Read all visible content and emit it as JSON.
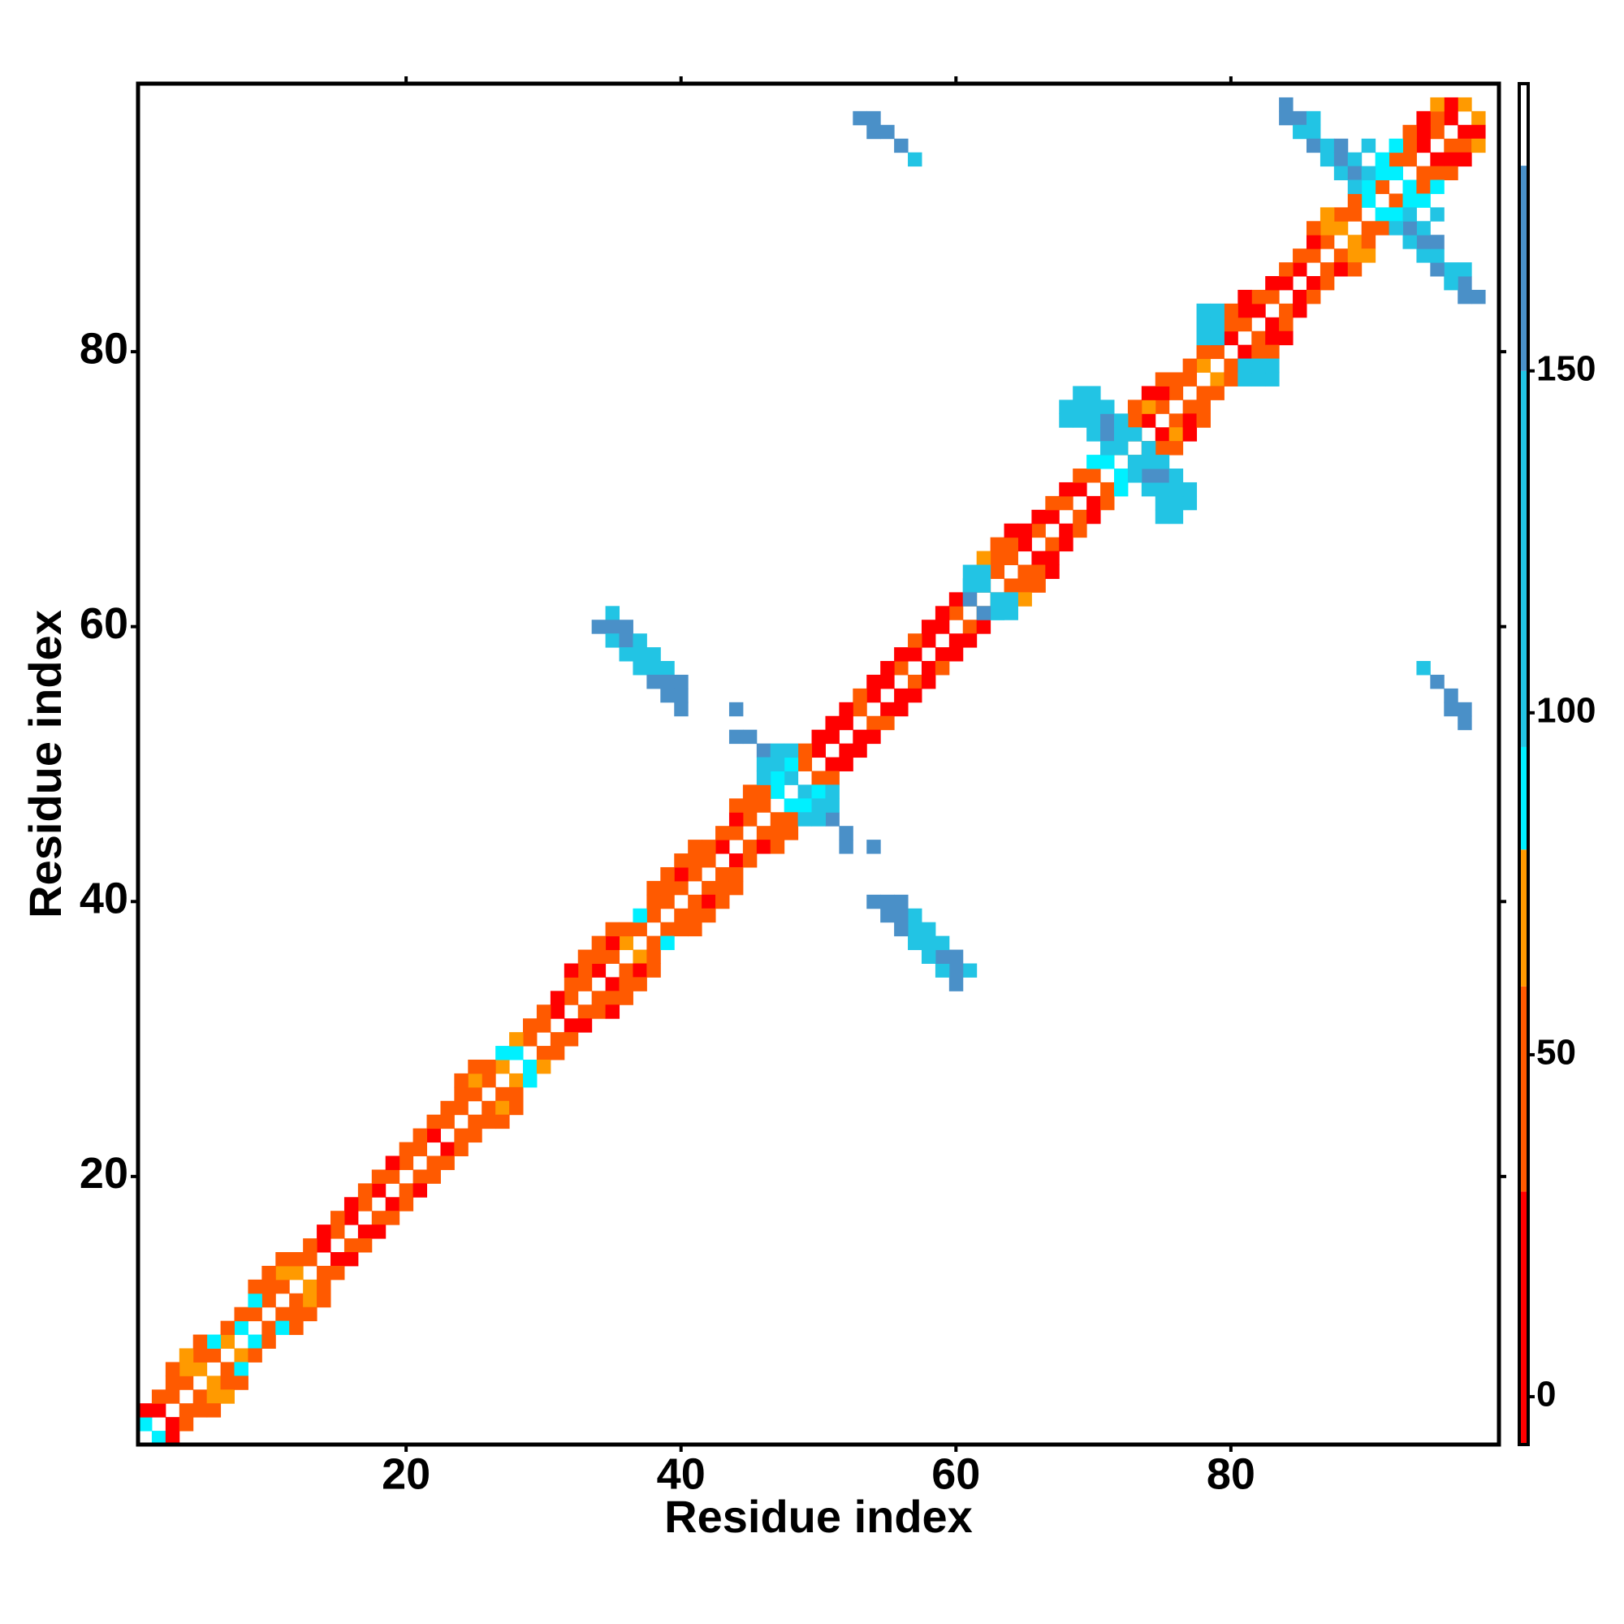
{
  "chart_data": {
    "type": "heatmap",
    "x_label": "Residue index",
    "y_label": "Residue index",
    "xlim": [
      0.5,
      99.5
    ],
    "ylim": [
      0.5,
      99.5
    ],
    "xticks": [
      20,
      40,
      60,
      80
    ],
    "yticks": [
      20,
      40,
      60,
      80
    ],
    "symmetric": true,
    "colorbar": {
      "lim": [
        -7,
        192
      ],
      "ticks": [
        0,
        50,
        100,
        150
      ]
    },
    "color_scale": [
      {
        "from": -7,
        "to": 30,
        "color": "#ff0000"
      },
      {
        "from": 30,
        "to": 60,
        "color": "#ff5a00"
      },
      {
        "from": 60,
        "to": 80,
        "color": "#ff9a00"
      },
      {
        "from": 80,
        "to": 95,
        "color": "#00f0ff"
      },
      {
        "from": 95,
        "to": 150,
        "color": "#22c4e4"
      },
      {
        "from": 150,
        "to": 180,
        "color": "#4a90c8"
      },
      {
        "from": 180,
        "to": 192,
        "color": "#ffffff"
      }
    ],
    "cells": [
      [
        1,
        2,
        88
      ],
      [
        2,
        3,
        10
      ],
      [
        3,
        4,
        40
      ],
      [
        4,
        5,
        40
      ],
      [
        5,
        6,
        70
      ],
      [
        6,
        7,
        40
      ],
      [
        7,
        8,
        70
      ],
      [
        8,
        9,
        88
      ],
      [
        9,
        10,
        40
      ],
      [
        10,
        11,
        40
      ],
      [
        11,
        12,
        40
      ],
      [
        12,
        13,
        70
      ],
      [
        13,
        14,
        40
      ],
      [
        14,
        15,
        10
      ],
      [
        15,
        16,
        40
      ],
      [
        16,
        17,
        10
      ],
      [
        17,
        18,
        40
      ],
      [
        18,
        19,
        10
      ],
      [
        19,
        20,
        40
      ],
      [
        20,
        21,
        40
      ],
      [
        21,
        22,
        40
      ],
      [
        22,
        23,
        10
      ],
      [
        23,
        24,
        40
      ],
      [
        24,
        25,
        40
      ],
      [
        25,
        26,
        40
      ],
      [
        26,
        27,
        40
      ],
      [
        27,
        28,
        70
      ],
      [
        28,
        29,
        88
      ],
      [
        29,
        30,
        40
      ],
      [
        30,
        31,
        40
      ],
      [
        31,
        32,
        10
      ],
      [
        32,
        33,
        40
      ],
      [
        33,
        34,
        40
      ],
      [
        34,
        35,
        10
      ],
      [
        35,
        36,
        40
      ],
      [
        36,
        37,
        70
      ],
      [
        37,
        38,
        40
      ],
      [
        38,
        39,
        40
      ],
      [
        39,
        40,
        40
      ],
      [
        40,
        41,
        40
      ],
      [
        41,
        42,
        40
      ],
      [
        42,
        43,
        40
      ],
      [
        43,
        44,
        10
      ],
      [
        44,
        45,
        40
      ],
      [
        45,
        46,
        40
      ],
      [
        46,
        47,
        40
      ],
      [
        47,
        48,
        88
      ],
      [
        48,
        49,
        120
      ],
      [
        49,
        50,
        40
      ],
      [
        50,
        51,
        10
      ],
      [
        51,
        52,
        10
      ],
      [
        52,
        53,
        10
      ],
      [
        53,
        54,
        40
      ],
      [
        54,
        55,
        10
      ],
      [
        55,
        56,
        10
      ],
      [
        56,
        57,
        40
      ],
      [
        57,
        58,
        10
      ],
      [
        58,
        59,
        10
      ],
      [
        59,
        60,
        10
      ],
      [
        60,
        61,
        40
      ],
      [
        61,
        62,
        70
      ],
      [
        62,
        63,
        40
      ],
      [
        63,
        64,
        40
      ],
      [
        64,
        65,
        40
      ],
      [
        65,
        66,
        10
      ],
      [
        66,
        67,
        40
      ],
      [
        67,
        68,
        10
      ],
      [
        68,
        69,
        40
      ],
      [
        69,
        70,
        10
      ],
      [
        70,
        71,
        40
      ],
      [
        71,
        72,
        88
      ],
      [
        72,
        73,
        70
      ],
      [
        73,
        74,
        40
      ],
      [
        74,
        75,
        10
      ],
      [
        75,
        76,
        40
      ],
      [
        76,
        77,
        40
      ],
      [
        77,
        78,
        40
      ],
      [
        78,
        79,
        70
      ],
      [
        79,
        80,
        40
      ],
      [
        80,
        81,
        10
      ],
      [
        81,
        82,
        40
      ],
      [
        82,
        83,
        10
      ],
      [
        83,
        84,
        40
      ],
      [
        84,
        85,
        10
      ],
      [
        85,
        86,
        10
      ],
      [
        86,
        87,
        40
      ],
      [
        87,
        88,
        40
      ],
      [
        88,
        89,
        70
      ],
      [
        89,
        90,
        40
      ],
      [
        90,
        91,
        88
      ],
      [
        91,
        92,
        40
      ],
      [
        92,
        93,
        88
      ],
      [
        93,
        94,
        40
      ],
      [
        94,
        95,
        10
      ],
      [
        95,
        96,
        40
      ],
      [
        96,
        97,
        10
      ],
      [
        97,
        98,
        70
      ],
      [
        1,
        3,
        10
      ],
      [
        2,
        4,
        40
      ],
      [
        3,
        5,
        40
      ],
      [
        4,
        6,
        70
      ],
      [
        5,
        7,
        40
      ],
      [
        6,
        8,
        88
      ],
      [
        7,
        9,
        40
      ],
      [
        8,
        10,
        40
      ],
      [
        9,
        11,
        88
      ],
      [
        10,
        12,
        40
      ],
      [
        11,
        13,
        70
      ],
      [
        12,
        14,
        40
      ],
      [
        13,
        15,
        40
      ],
      [
        14,
        16,
        10
      ],
      [
        15,
        17,
        40
      ],
      [
        16,
        18,
        10
      ],
      [
        17,
        19,
        40
      ],
      [
        18,
        20,
        40
      ],
      [
        19,
        21,
        10
      ],
      [
        20,
        22,
        40
      ],
      [
        21,
        23,
        40
      ],
      [
        22,
        24,
        40
      ],
      [
        23,
        25,
        40
      ],
      [
        24,
        26,
        40
      ],
      [
        25,
        27,
        70
      ],
      [
        26,
        28,
        40
      ],
      [
        27,
        29,
        88
      ],
      [
        28,
        30,
        70
      ],
      [
        29,
        31,
        40
      ],
      [
        30,
        32,
        40
      ],
      [
        31,
        33,
        10
      ],
      [
        32,
        34,
        40
      ],
      [
        33,
        35,
        40
      ],
      [
        34,
        36,
        40
      ],
      [
        35,
        37,
        10
      ],
      [
        36,
        38,
        40
      ],
      [
        37,
        39,
        88
      ],
      [
        38,
        40,
        40
      ],
      [
        39,
        41,
        40
      ],
      [
        40,
        42,
        10
      ],
      [
        41,
        43,
        40
      ],
      [
        42,
        44,
        40
      ],
      [
        43,
        45,
        40
      ],
      [
        44,
        46,
        10
      ],
      [
        45,
        47,
        40
      ],
      [
        46,
        48,
        40
      ],
      [
        47,
        49,
        88
      ],
      [
        48,
        50,
        88
      ],
      [
        49,
        51,
        40
      ],
      [
        50,
        52,
        10
      ],
      [
        51,
        53,
        10
      ],
      [
        52,
        54,
        10
      ],
      [
        53,
        55,
        40
      ],
      [
        54,
        56,
        10
      ],
      [
        55,
        57,
        10
      ],
      [
        56,
        58,
        10
      ],
      [
        57,
        59,
        40
      ],
      [
        58,
        60,
        10
      ],
      [
        59,
        61,
        10
      ],
      [
        60,
        62,
        10
      ],
      [
        61,
        63,
        88
      ],
      [
        62,
        64,
        70
      ],
      [
        63,
        65,
        40
      ],
      [
        64,
        66,
        40
      ],
      [
        65,
        67,
        10
      ],
      [
        66,
        68,
        10
      ],
      [
        67,
        69,
        40
      ],
      [
        68,
        70,
        10
      ],
      [
        69,
        71,
        40
      ],
      [
        70,
        72,
        88
      ],
      [
        71,
        73,
        88
      ],
      [
        72,
        74,
        40
      ],
      [
        73,
        75,
        40
      ],
      [
        74,
        76,
        70
      ],
      [
        75,
        77,
        10
      ],
      [
        76,
        78,
        40
      ],
      [
        77,
        79,
        40
      ],
      [
        78,
        80,
        40
      ],
      [
        79,
        81,
        10
      ],
      [
        80,
        82,
        40
      ],
      [
        81,
        83,
        10
      ],
      [
        82,
        84,
        40
      ],
      [
        83,
        85,
        10
      ],
      [
        84,
        86,
        40
      ],
      [
        85,
        87,
        40
      ],
      [
        86,
        88,
        10
      ],
      [
        87,
        89,
        70
      ],
      [
        88,
        90,
        40
      ],
      [
        89,
        91,
        40
      ],
      [
        90,
        92,
        88
      ],
      [
        91,
        93,
        88
      ],
      [
        92,
        94,
        40
      ],
      [
        93,
        95,
        40
      ],
      [
        94,
        96,
        10
      ],
      [
        95,
        97,
        40
      ],
      [
        96,
        98,
        10
      ],
      [
        3,
        6,
        40
      ],
      [
        4,
        7,
        70
      ],
      [
        5,
        8,
        40
      ],
      [
        9,
        12,
        40
      ],
      [
        10,
        13,
        40
      ],
      [
        11,
        14,
        40
      ],
      [
        24,
        27,
        40
      ],
      [
        25,
        28,
        40
      ],
      [
        32,
        35,
        10
      ],
      [
        33,
        36,
        40
      ],
      [
        34,
        37,
        40
      ],
      [
        35,
        38,
        40
      ],
      [
        38,
        41,
        40
      ],
      [
        39,
        42,
        40
      ],
      [
        40,
        43,
        40
      ],
      [
        41,
        44,
        40
      ],
      [
        44,
        47,
        40
      ],
      [
        45,
        48,
        40
      ],
      [
        62,
        65,
        70
      ],
      [
        63,
        66,
        40
      ],
      [
        64,
        67,
        10
      ],
      [
        73,
        76,
        40
      ],
      [
        74,
        77,
        10
      ],
      [
        75,
        78,
        40
      ],
      [
        80,
        83,
        40
      ],
      [
        81,
        84,
        10
      ],
      [
        86,
        89,
        40
      ],
      [
        87,
        90,
        70
      ],
      [
        93,
        96,
        40
      ],
      [
        94,
        97,
        10
      ],
      [
        95,
        98,
        70
      ],
      [
        34,
        60,
        165
      ],
      [
        35,
        61,
        120
      ],
      [
        35,
        60,
        165
      ],
      [
        35,
        59,
        120
      ],
      [
        36,
        60,
        165
      ],
      [
        36,
        59,
        165
      ],
      [
        36,
        58,
        120
      ],
      [
        37,
        59,
        120
      ],
      [
        37,
        58,
        120
      ],
      [
        37,
        57,
        120
      ],
      [
        38,
        58,
        120
      ],
      [
        38,
        57,
        120
      ],
      [
        38,
        56,
        165
      ],
      [
        39,
        57,
        120
      ],
      [
        39,
        56,
        165
      ],
      [
        39,
        55,
        165
      ],
      [
        40,
        56,
        165
      ],
      [
        40,
        55,
        165
      ],
      [
        40,
        54,
        165
      ],
      [
        44,
        54,
        165
      ],
      [
        44,
        52,
        165
      ],
      [
        45,
        52,
        165
      ],
      [
        46,
        51,
        165
      ],
      [
        46,
        50,
        120
      ],
      [
        47,
        51,
        120
      ],
      [
        47,
        50,
        120
      ],
      [
        48,
        51,
        120
      ],
      [
        46,
        49,
        120
      ],
      [
        53,
        97,
        165
      ],
      [
        54,
        97,
        165
      ],
      [
        54,
        96,
        165
      ],
      [
        55,
        96,
        165
      ],
      [
        56,
        95,
        165
      ],
      [
        57,
        94,
        120
      ],
      [
        61,
        64,
        120
      ],
      [
        61,
        63,
        120
      ],
      [
        62,
        64,
        120
      ],
      [
        62,
        63,
        120
      ],
      [
        61,
        62,
        165
      ],
      [
        68,
        75,
        120
      ],
      [
        68,
        76,
        120
      ],
      [
        69,
        75,
        120
      ],
      [
        69,
        76,
        120
      ],
      [
        69,
        77,
        120
      ],
      [
        70,
        77,
        120
      ],
      [
        70,
        76,
        120
      ],
      [
        70,
        75,
        120
      ],
      [
        70,
        74,
        120
      ],
      [
        71,
        75,
        165
      ],
      [
        71,
        74,
        165
      ],
      [
        71,
        73,
        120
      ],
      [
        72,
        74,
        120
      ],
      [
        72,
        73,
        120
      ],
      [
        72,
        75,
        120
      ],
      [
        73,
        74,
        120
      ],
      [
        71,
        76,
        120
      ],
      [
        78,
        81,
        120
      ],
      [
        78,
        82,
        120
      ],
      [
        78,
        83,
        120
      ],
      [
        79,
        82,
        120
      ],
      [
        79,
        83,
        120
      ],
      [
        79,
        81,
        120
      ],
      [
        84,
        97,
        165
      ],
      [
        84,
        98,
        165
      ],
      [
        85,
        97,
        165
      ],
      [
        85,
        96,
        120
      ],
      [
        86,
        96,
        120
      ],
      [
        86,
        97,
        120
      ],
      [
        86,
        95,
        165
      ],
      [
        87,
        95,
        120
      ],
      [
        87,
        94,
        120
      ],
      [
        88,
        95,
        165
      ],
      [
        88,
        94,
        165
      ],
      [
        88,
        93,
        120
      ],
      [
        89,
        94,
        120
      ],
      [
        89,
        93,
        165
      ],
      [
        90,
        93,
        120
      ],
      [
        89,
        92,
        120
      ],
      [
        91,
        94,
        88
      ],
      [
        92,
        95,
        88
      ],
      [
        90,
        95,
        120
      ]
    ]
  }
}
